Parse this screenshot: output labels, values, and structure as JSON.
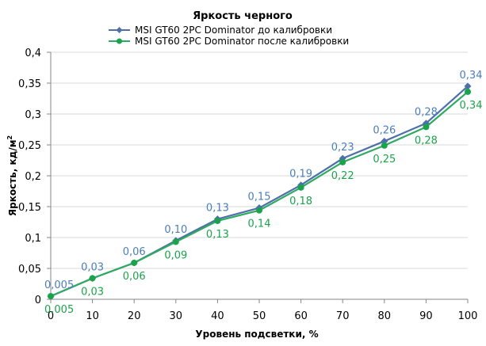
{
  "chart_data": {
    "type": "line",
    "title": "Яркость черного",
    "xlabel": "Уровень подсветки, %",
    "ylabel": "Яркость, кд/м",
    "ylabel_sup": "2",
    "x": [
      0,
      10,
      20,
      30,
      40,
      50,
      60,
      70,
      80,
      90,
      100
    ],
    "x_tick_labels": [
      "0",
      "10",
      "20",
      "30",
      "40",
      "50",
      "60",
      "70",
      "80",
      "90",
      "100"
    ],
    "xlim": [
      0,
      100
    ],
    "ylim": [
      0,
      0.4
    ],
    "y_ticks": [
      0,
      0.05,
      0.1,
      0.15,
      0.2,
      0.25,
      0.3,
      0.35,
      0.4
    ],
    "y_tick_labels": [
      "0",
      "0,05",
      "0,1",
      "0,15",
      "0,2",
      "0,25",
      "0,3",
      "0,35",
      "0,4"
    ],
    "grid": "horizontal",
    "legend_position": "top",
    "series": [
      {
        "name": "MSI GT60  2PC Dominator  до калибровки",
        "color": "#4a7ebb",
        "line_color": "#4f6fa8",
        "marker": "diamond",
        "label_position": "above",
        "values": [
          0.005,
          0.034,
          0.059,
          0.095,
          0.13,
          0.148,
          0.185,
          0.228,
          0.256,
          0.285,
          0.345
        ],
        "labels": [
          "0,005",
          "0,03",
          "0,06",
          "0,10",
          "0,13",
          "0,15",
          "0,19",
          "0,23",
          "0,26",
          "0,28",
          "0,34"
        ]
      },
      {
        "name": "MSI GT60  2PC Dominator  после калибровки",
        "color": "#1aa34a",
        "line_color": "#2eaa62",
        "marker": "circle",
        "label_position": "below",
        "values": [
          0.005,
          0.034,
          0.059,
          0.093,
          0.127,
          0.144,
          0.181,
          0.222,
          0.249,
          0.279,
          0.336
        ],
        "labels": [
          "0,005",
          "0,03",
          "0,06",
          "0,09",
          "0,13",
          "0,14",
          "0,18",
          "0,22",
          "0,25",
          "0,28",
          "0,34"
        ]
      }
    ]
  }
}
